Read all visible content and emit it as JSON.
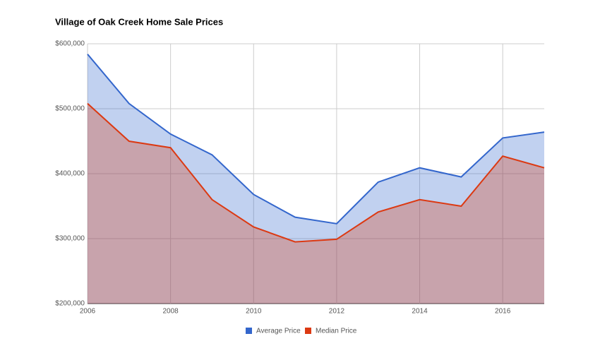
{
  "chart_data": {
    "type": "area",
    "title": "Village of Oak Creek Home Sale Prices",
    "x": [
      2006,
      2007,
      2008,
      2009,
      2010,
      2011,
      2012,
      2013,
      2014,
      2015,
      2016,
      2017
    ],
    "series": [
      {
        "name": "Average Price",
        "color": "#3366cc",
        "values": [
          584000,
          508000,
          461000,
          429000,
          368000,
          333000,
          323000,
          387000,
          409000,
          395000,
          455000,
          464000
        ]
      },
      {
        "name": "Median Price",
        "color": "#dc3912",
        "values": [
          508000,
          450000,
          440000,
          360000,
          318000,
          295000,
          299000,
          341000,
          360000,
          350000,
          427000,
          409000
        ]
      }
    ],
    "xlim": [
      2006,
      2017
    ],
    "xticks": [
      2006,
      2008,
      2010,
      2012,
      2014,
      2016
    ],
    "ylim": [
      200000,
      600000
    ],
    "yticks": [
      {
        "value": 200000,
        "label": "$200,000"
      },
      {
        "value": 300000,
        "label": "$300,000"
      },
      {
        "value": 400000,
        "label": "$400,000"
      },
      {
        "value": 500000,
        "label": "$500,000"
      },
      {
        "value": 600000,
        "label": "$600,000"
      }
    ],
    "grid": true,
    "legend": "bottom"
  }
}
